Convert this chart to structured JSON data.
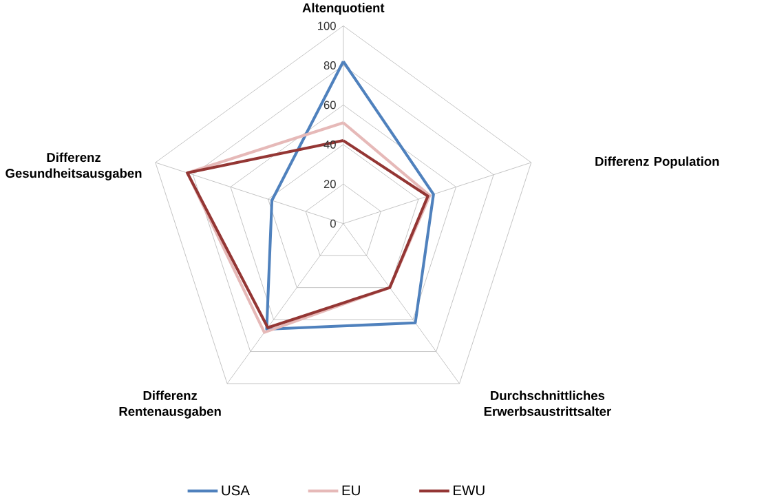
{
  "chart_data": {
    "type": "radar",
    "categories": [
      "Altenquotient",
      "Differenz Population",
      "Durchschnittliches Erwerbsaustrittsalter",
      "Differenz Rentenausgaben",
      "Differenz Gesundheitsausgaben"
    ],
    "series": [
      {
        "name": "USA",
        "color": "#4f81bd",
        "values": [
          82,
          48,
          62,
          66,
          38
        ]
      },
      {
        "name": "EU",
        "color": "#e6b9b8",
        "values": [
          51,
          46,
          40,
          68,
          83
        ]
      },
      {
        "name": "EWU",
        "color": "#943634",
        "values": [
          42,
          45,
          40,
          65,
          83
        ]
      }
    ],
    "ylim": [
      0,
      100
    ],
    "yticks": [
      0,
      20,
      40,
      60,
      80,
      100
    ],
    "grid": true,
    "legend": "bottom"
  }
}
